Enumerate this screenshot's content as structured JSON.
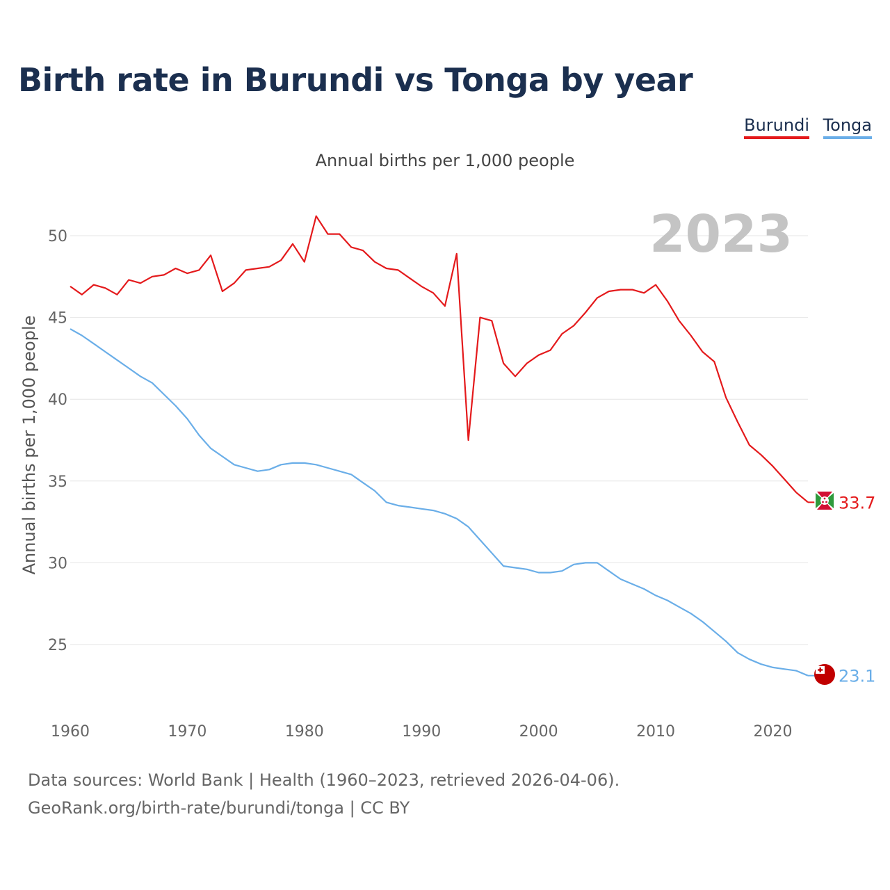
{
  "title": "Birth rate in Burundi vs Tonga by year",
  "subtitle": "Annual births per 1,000 people",
  "legend": [
    {
      "name": "Burundi",
      "color": "#e41a1c"
    },
    {
      "name": "Tonga",
      "color": "#6aaee8"
    }
  ],
  "current_year": "2023",
  "footer": {
    "line1": "Data sources: World Bank | Health (1960–2023, retrieved 2026-04-06).",
    "line2": "GeoRank.org/birth-rate/burundi/tonga | CC BY"
  },
  "chart_data": {
    "type": "line",
    "title": "Birth rate in Burundi vs Tonga by year",
    "xlabel": "",
    "ylabel": "Annual births per 1,000 people",
    "xlim": [
      1960,
      2023
    ],
    "ylim": [
      22,
      53
    ],
    "x_ticks": [
      1960,
      1970,
      1980,
      1990,
      2000,
      2010,
      2020
    ],
    "y_ticks": [
      25,
      30,
      35,
      40,
      45,
      50
    ],
    "x": [
      1960,
      1961,
      1962,
      1963,
      1964,
      1965,
      1966,
      1967,
      1968,
      1969,
      1970,
      1971,
      1972,
      1973,
      1974,
      1975,
      1976,
      1977,
      1978,
      1979,
      1980,
      1981,
      1982,
      1983,
      1984,
      1985,
      1986,
      1987,
      1988,
      1989,
      1990,
      1991,
      1992,
      1993,
      1994,
      1995,
      1996,
      1997,
      1998,
      1999,
      2000,
      2001,
      2002,
      2003,
      2004,
      2005,
      2006,
      2007,
      2008,
      2009,
      2010,
      2011,
      2012,
      2013,
      2014,
      2015,
      2016,
      2017,
      2018,
      2019,
      2020,
      2021,
      2022,
      2023
    ],
    "series": [
      {
        "name": "Burundi",
        "color": "#e41a1c",
        "end_label": "33.7",
        "values": [
          46.9,
          46.4,
          47.0,
          46.8,
          46.4,
          47.3,
          47.1,
          47.5,
          47.6,
          48.0,
          47.7,
          47.9,
          48.8,
          46.6,
          47.1,
          47.9,
          48.0,
          48.1,
          48.5,
          49.5,
          48.4,
          51.2,
          50.1,
          50.1,
          49.3,
          49.1,
          48.4,
          48.0,
          47.9,
          47.4,
          46.9,
          46.5,
          45.7,
          48.9,
          37.5,
          45.0,
          44.8,
          42.2,
          41.4,
          42.2,
          42.7,
          43.0,
          44.0,
          44.5,
          45.3,
          46.2,
          46.6,
          46.7,
          46.7,
          46.5,
          47.0,
          46.0,
          44.8,
          43.9,
          42.9,
          42.3,
          40.1,
          38.6,
          37.2,
          36.6,
          35.9,
          35.1,
          34.3,
          33.7
        ]
      },
      {
        "name": "Tonga",
        "color": "#6aaee8",
        "end_label": "23.1",
        "values": [
          44.3,
          43.9,
          43.4,
          42.9,
          42.4,
          41.9,
          41.4,
          41.0,
          40.3,
          39.6,
          38.8,
          37.8,
          37.0,
          36.5,
          36.0,
          35.8,
          35.6,
          35.7,
          36.0,
          36.1,
          36.1,
          36.0,
          35.8,
          35.6,
          35.4,
          34.9,
          34.4,
          33.7,
          33.5,
          33.4,
          33.3,
          33.2,
          33.0,
          32.7,
          32.2,
          31.4,
          30.6,
          29.8,
          29.7,
          29.6,
          29.4,
          29.4,
          29.5,
          29.9,
          30.0,
          30.0,
          29.5,
          29.0,
          28.7,
          28.4,
          28.0,
          27.7,
          27.3,
          26.9,
          26.4,
          25.8,
          25.2,
          24.5,
          24.1,
          23.8,
          23.6,
          23.5,
          23.4,
          23.1
        ]
      }
    ]
  }
}
